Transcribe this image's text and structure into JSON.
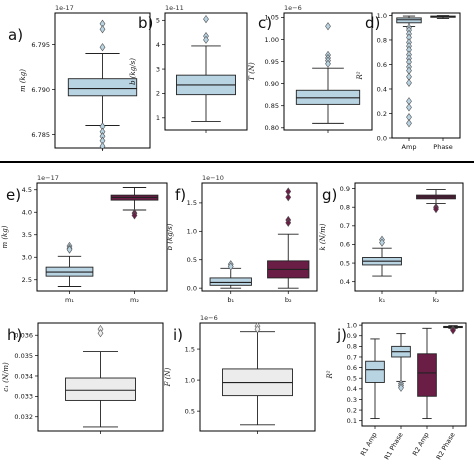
{
  "chart_data": [
    {
      "id": "a",
      "panel_label": "a)",
      "type": "box",
      "offset_text": "1e-17",
      "ylabel": "m (kg)",
      "ylim": [
        6.7835,
        6.7985
      ],
      "yticks": [
        {
          "v": 6.785,
          "t": "6.785"
        },
        {
          "v": 6.79,
          "t": "6.790"
        },
        {
          "v": 6.795,
          "t": "6.795"
        }
      ],
      "categories": [
        ""
      ],
      "boxes": [
        {
          "min": 6.786,
          "q1": 6.7893,
          "median": 6.7901,
          "q3": 6.7912,
          "max": 6.794,
          "fill": "#b8d3e2",
          "outliers": [
            6.7973,
            6.7967,
            6.7947,
            6.7859,
            6.7853,
            6.7848,
            6.7843,
            6.7837
          ]
        }
      ]
    },
    {
      "id": "b",
      "panel_label": "b)",
      "type": "box",
      "offset_text": "1e-11",
      "ylabel": "b (kg/s)",
      "ylim": [
        0.5,
        5.3
      ],
      "yticks": [
        {
          "v": 1,
          "t": "1"
        },
        {
          "v": 2,
          "t": "2"
        },
        {
          "v": 3,
          "t": "3"
        },
        {
          "v": 4,
          "t": "4"
        },
        {
          "v": 5,
          "t": "5"
        }
      ],
      "categories": [
        ""
      ],
      "boxes": [
        {
          "min": 0.85,
          "q1": 1.95,
          "median": 2.35,
          "q3": 2.75,
          "max": 3.95,
          "fill": "#b8d3e2",
          "outliers": [
            5.05,
            4.35,
            4.2
          ]
        }
      ]
    },
    {
      "id": "c",
      "panel_label": "c)",
      "type": "box",
      "offset_text": "1e−6",
      "ylabel": "T (N)",
      "ylim": [
        0.795,
        1.06
      ],
      "yticks": [
        {
          "v": 0.8,
          "t": "0.80"
        },
        {
          "v": 0.85,
          "t": "0.85"
        },
        {
          "v": 0.9,
          "t": "0.90"
        },
        {
          "v": 0.95,
          "t": "0.95"
        },
        {
          "v": 1.0,
          "t": "1.00"
        },
        {
          "v": 1.05,
          "t": "1.05"
        }
      ],
      "categories": [
        ""
      ],
      "boxes": [
        {
          "min": 0.81,
          "q1": 0.853,
          "median": 0.868,
          "q3": 0.885,
          "max": 0.935,
          "fill": "#b8d3e2",
          "outliers": [
            1.03,
            0.965,
            0.958,
            0.952,
            0.945
          ]
        }
      ]
    },
    {
      "id": "d",
      "panel_label": "d)",
      "type": "box",
      "ylabel": "R²",
      "ylim": [
        0.0,
        1.02
      ],
      "yticks": [
        {
          "v": 0.0,
          "t": "0.0"
        },
        {
          "v": 0.2,
          "t": "0.2"
        },
        {
          "v": 0.4,
          "t": "0.4"
        },
        {
          "v": 0.6,
          "t": "0.6"
        },
        {
          "v": 0.8,
          "t": "0.8"
        },
        {
          "v": 1.0,
          "t": "1.0"
        }
      ],
      "categories": [
        "Amp",
        "Phase"
      ],
      "boxes": [
        {
          "min": 0.91,
          "q1": 0.94,
          "median": 0.965,
          "q3": 0.98,
          "max": 0.995,
          "fill": "#b8d3e2",
          "outliers": [
            0.9,
            0.88,
            0.85,
            0.82,
            0.78,
            0.75,
            0.72,
            0.68,
            0.65,
            0.62,
            0.58,
            0.55,
            0.5,
            0.45,
            0.3,
            0.25,
            0.17,
            0.12
          ]
        },
        {
          "min": 0.975,
          "q1": 0.985,
          "median": 0.99,
          "q3": 0.995,
          "max": 0.999,
          "fill": "#b8d3e2",
          "outliers": []
        }
      ]
    },
    {
      "id": "e",
      "panel_label": "e)",
      "type": "box",
      "offset_text": "1e−17",
      "ylabel": "m (kg)",
      "ylim": [
        2.25,
        4.65
      ],
      "yticks": [
        {
          "v": 2.5,
          "t": "2.5"
        },
        {
          "v": 3.0,
          "t": "3.0"
        },
        {
          "v": 3.5,
          "t": "3.5"
        },
        {
          "v": 4.0,
          "t": "4.0"
        },
        {
          "v": 4.5,
          "t": "4.5"
        }
      ],
      "categories": [
        "m₁",
        "m₂"
      ],
      "boxes": [
        {
          "min": 2.35,
          "q1": 2.58,
          "median": 2.67,
          "q3": 2.78,
          "max": 3.02,
          "fill": "#b8d3e2",
          "outliers": [
            3.25,
            3.2,
            3.17
          ]
        },
        {
          "min": 4.05,
          "q1": 4.27,
          "median": 4.33,
          "q3": 4.38,
          "max": 4.55,
          "fill": "#6a1d45",
          "outliers": [
            3.98,
            3.93
          ]
        }
      ]
    },
    {
      "id": "f",
      "panel_label": "f)",
      "type": "box",
      "offset_text": "1e−10",
      "ylabel": "b (kg/s)",
      "ylim": [
        -0.05,
        1.85
      ],
      "yticks": [
        {
          "v": 0.0,
          "t": "0.0"
        },
        {
          "v": 0.5,
          "t": "0.5"
        },
        {
          "v": 1.0,
          "t": "1.0"
        },
        {
          "v": 1.5,
          "t": "1.5"
        }
      ],
      "categories": [
        "b₁",
        "b₂"
      ],
      "boxes": [
        {
          "min": 0.0,
          "q1": 0.05,
          "median": 0.1,
          "q3": 0.18,
          "max": 0.35,
          "fill": "#b8d3e2",
          "outliers": [
            0.42,
            0.38
          ]
        },
        {
          "min": 0.0,
          "q1": 0.18,
          "median": 0.33,
          "q3": 0.48,
          "max": 0.95,
          "fill": "#6a1d45",
          "outliers": [
            1.7,
            1.6,
            1.2,
            1.15
          ]
        }
      ]
    },
    {
      "id": "g",
      "panel_label": "g)",
      "type": "box",
      "ylabel": "k (N/m)",
      "ylim": [
        0.35,
        0.93
      ],
      "yticks": [
        {
          "v": 0.4,
          "t": "0.4"
        },
        {
          "v": 0.5,
          "t": "0.5"
        },
        {
          "v": 0.6,
          "t": "0.6"
        },
        {
          "v": 0.7,
          "t": "0.7"
        },
        {
          "v": 0.8,
          "t": "0.8"
        },
        {
          "v": 0.9,
          "t": "0.9"
        }
      ],
      "categories": [
        "k₁",
        "k₂"
      ],
      "boxes": [
        {
          "min": 0.43,
          "q1": 0.49,
          "median": 0.51,
          "q3": 0.53,
          "max": 0.58,
          "fill": "#b8d3e2",
          "outliers": [
            0.625,
            0.61
          ]
        },
        {
          "min": 0.82,
          "q1": 0.845,
          "median": 0.855,
          "q3": 0.865,
          "max": 0.895,
          "fill": "#6a1d45",
          "outliers": [
            0.8,
            0.79
          ]
        }
      ]
    },
    {
      "id": "h",
      "panel_label": "h)",
      "type": "box",
      "ylabel": "c₁ (N/m)",
      "ylim": [
        0.0313,
        0.0366
      ],
      "yticks": [
        {
          "v": 0.032,
          "t": "0.032"
        },
        {
          "v": 0.033,
          "t": "0.033"
        },
        {
          "v": 0.034,
          "t": "0.034"
        },
        {
          "v": 0.035,
          "t": "0.035"
        },
        {
          "v": 0.036,
          "t": "0.036"
        }
      ],
      "categories": [
        ""
      ],
      "boxes": [
        {
          "min": 0.0315,
          "q1": 0.0328,
          "median": 0.0333,
          "q3": 0.0339,
          "max": 0.0352,
          "fill": "#ececec",
          "outliers": [
            0.0363,
            0.0361
          ]
        }
      ]
    },
    {
      "id": "i",
      "panel_label": "i)",
      "type": "box",
      "offset_text": "1e−6",
      "ylabel": "F (N)",
      "ylim": [
        0.18,
        1.92
      ],
      "yticks": [
        {
          "v": 0.5,
          "t": "0.5"
        },
        {
          "v": 1.0,
          "t": "1.0"
        },
        {
          "v": 1.5,
          "t": "1.5"
        }
      ],
      "categories": [
        ""
      ],
      "boxes": [
        {
          "min": 0.28,
          "q1": 0.75,
          "median": 0.96,
          "q3": 1.18,
          "max": 1.78,
          "fill": "#ececec",
          "outliers": [
            1.87,
            1.82
          ]
        }
      ]
    },
    {
      "id": "j",
      "panel_label": "j)",
      "type": "box",
      "ylabel": "R²",
      "ylim": [
        0.05,
        1.02
      ],
      "yticks": [
        {
          "v": 0.1,
          "t": "0.1"
        },
        {
          "v": 0.2,
          "t": "0.2"
        },
        {
          "v": 0.3,
          "t": "0.3"
        },
        {
          "v": 0.4,
          "t": "0.4"
        },
        {
          "v": 0.5,
          "t": "0.5"
        },
        {
          "v": 0.6,
          "t": "0.6"
        },
        {
          "v": 0.7,
          "t": "0.7"
        },
        {
          "v": 0.8,
          "t": "0.8"
        },
        {
          "v": 0.9,
          "t": "0.9"
        },
        {
          "v": 1.0,
          "t": "1.0"
        }
      ],
      "categories": [
        "R1 Amp",
        "R1 Phase",
        "R2 Amp",
        "R2 Phase"
      ],
      "tick_rotate": true,
      "boxes": [
        {
          "min": 0.12,
          "q1": 0.46,
          "median": 0.58,
          "q3": 0.66,
          "max": 0.87,
          "fill": "#b8d3e2",
          "outliers": []
        },
        {
          "min": 0.47,
          "q1": 0.7,
          "median": 0.75,
          "q3": 0.8,
          "max": 0.92,
          "fill": "#b8d3e2",
          "outliers": [
            0.45,
            0.43,
            0.41
          ]
        },
        {
          "min": 0.12,
          "q1": 0.33,
          "median": 0.55,
          "q3": 0.73,
          "max": 0.97,
          "fill": "#6a1d45",
          "outliers": []
        },
        {
          "min": 0.97,
          "q1": 0.978,
          "median": 0.983,
          "q3": 0.988,
          "max": 0.995,
          "fill": "#6a1d45",
          "outliers": [
            0.96,
            0.95
          ]
        }
      ]
    }
  ]
}
